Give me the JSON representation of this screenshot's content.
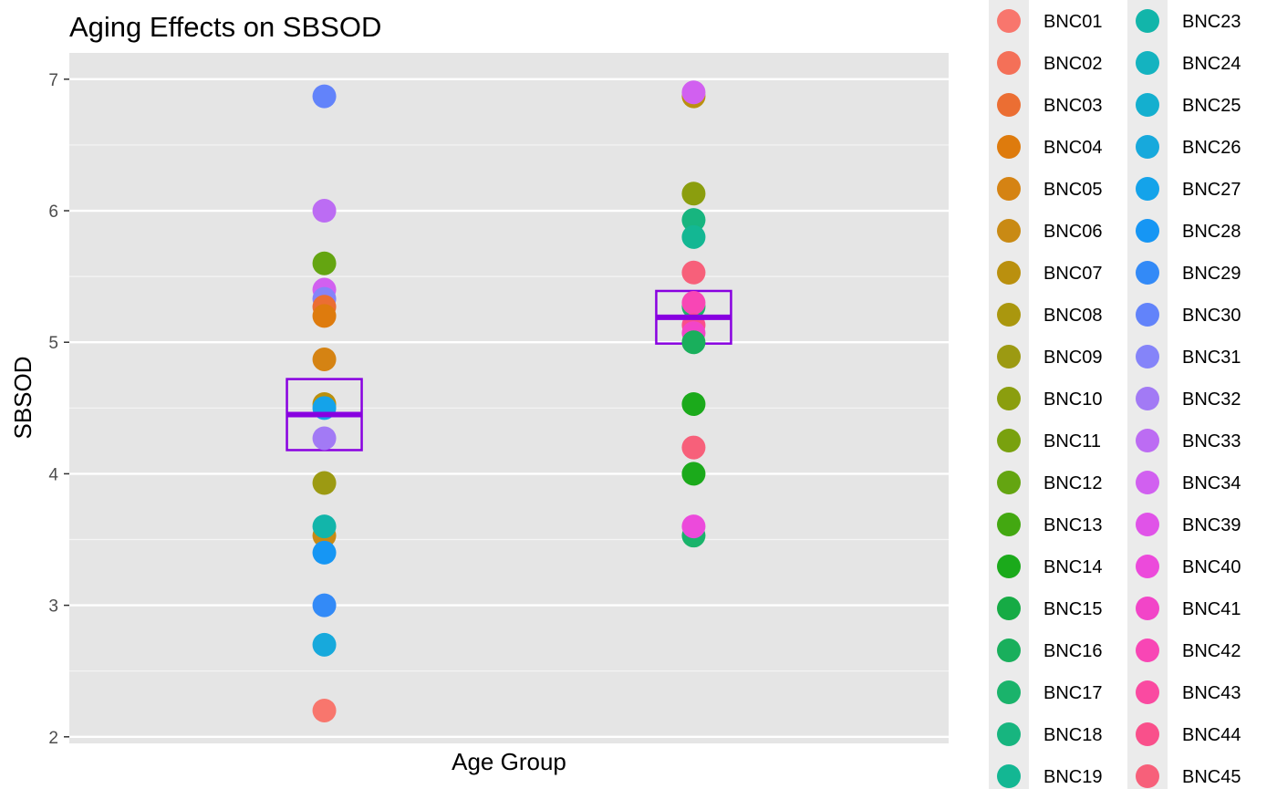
{
  "chart_data": {
    "type": "scatter",
    "title": "Aging Effects on SBSOD",
    "xlabel": "Age Group",
    "ylabel": "SBSOD",
    "ylim": [
      1.95,
      7.2
    ],
    "yticks": [
      "2",
      "3",
      "4",
      "5",
      "6",
      "7"
    ],
    "grid": true,
    "legend_position": "right",
    "groups": [
      {
        "points": [
          {
            "id": "BNC30",
            "y": 6.87
          },
          {
            "id": "BNC33",
            "y": 6.0
          },
          {
            "id": "BNC12",
            "y": 5.6
          },
          {
            "id": "BNC34",
            "y": 5.4
          },
          {
            "id": "BNC31",
            "y": 5.33
          },
          {
            "id": "BNC03",
            "y": 5.27
          },
          {
            "id": "BNC04",
            "y": 5.2
          },
          {
            "id": "BNC05",
            "y": 4.87
          },
          {
            "id": "BNC07",
            "y": 4.53
          },
          {
            "id": "BNC27",
            "y": 4.5
          },
          {
            "id": "BNC32",
            "y": 4.27
          },
          {
            "id": "BNC09",
            "y": 3.93
          },
          {
            "id": "BNC06",
            "y": 3.53
          },
          {
            "id": "BNC23",
            "y": 3.6
          },
          {
            "id": "BNC28",
            "y": 3.4
          },
          {
            "id": "BNC29",
            "y": 3.0
          },
          {
            "id": "BNC26",
            "y": 2.7
          },
          {
            "id": "BNC01",
            "y": 2.2
          }
        ],
        "mean": 4.45,
        "box_low": 4.18,
        "box_high": 4.72
      },
      {
        "points": [
          {
            "id": "BNC07",
            "y": 6.87
          },
          {
            "id": "BNC34",
            "y": 6.9
          },
          {
            "id": "BNC10",
            "y": 6.13
          },
          {
            "id": "BNC18",
            "y": 5.93
          },
          {
            "id": "BNC19",
            "y": 5.8
          },
          {
            "id": "BNC45",
            "y": 5.53
          },
          {
            "id": "BNC17",
            "y": 5.27
          },
          {
            "id": "BNC42",
            "y": 5.3
          },
          {
            "id": "BNC44",
            "y": 5.13
          },
          {
            "id": "BNC41",
            "y": 5.07
          },
          {
            "id": "BNC16",
            "y": 5.0
          },
          {
            "id": "BNC14",
            "y": 4.53
          },
          {
            "id": "BNC45",
            "y": 4.2
          },
          {
            "id": "BNC14",
            "y": 4.0
          },
          {
            "id": "BNC17",
            "y": 3.53
          },
          {
            "id": "BNC40",
            "y": 3.6
          }
        ],
        "mean": 5.19,
        "box_low": 4.99,
        "box_high": 5.39
      }
    ],
    "summary_color": "#8800e0",
    "legend": [
      {
        "label": "BNC01",
        "color": "#F8766D"
      },
      {
        "label": "BNC02",
        "color": "#F47058"
      },
      {
        "label": "BNC03",
        "color": "#EB6E33"
      },
      {
        "label": "BNC04",
        "color": "#DE7B0D"
      },
      {
        "label": "BNC05",
        "color": "#D58313"
      },
      {
        "label": "BNC06",
        "color": "#C98A14"
      },
      {
        "label": "BNC07",
        "color": "#BA900E"
      },
      {
        "label": "BNC08",
        "color": "#AA970E"
      },
      {
        "label": "BNC09",
        "color": "#9C9A12"
      },
      {
        "label": "BNC10",
        "color": "#8B9E0E"
      },
      {
        "label": "BNC11",
        "color": "#79A10E"
      },
      {
        "label": "BNC12",
        "color": "#64A511"
      },
      {
        "label": "BNC13",
        "color": "#43A811"
      },
      {
        "label": "BNC14",
        "color": "#1BAA1B"
      },
      {
        "label": "BNC15",
        "color": "#16AB45"
      },
      {
        "label": "BNC16",
        "color": "#19AF5C"
      },
      {
        "label": "BNC17",
        "color": "#1AB36B"
      },
      {
        "label": "BNC18",
        "color": "#17B57F"
      },
      {
        "label": "BNC19",
        "color": "#13B793"
      },
      {
        "label": "BNC23",
        "color": "#12B5AA"
      },
      {
        "label": "BNC24",
        "color": "#14B3C0"
      },
      {
        "label": "BNC25",
        "color": "#14AFCF"
      },
      {
        "label": "BNC26",
        "color": "#17A9DC"
      },
      {
        "label": "BNC27",
        "color": "#14A3EA"
      },
      {
        "label": "BNC28",
        "color": "#1696F4"
      },
      {
        "label": "BNC29",
        "color": "#338AF7"
      },
      {
        "label": "BNC30",
        "color": "#6283FA"
      },
      {
        "label": "BNC31",
        "color": "#8584F9"
      },
      {
        "label": "BNC32",
        "color": "#A27AF5"
      },
      {
        "label": "BNC33",
        "color": "#BC6CF3"
      },
      {
        "label": "BNC34",
        "color": "#D160F0"
      },
      {
        "label": "BNC39",
        "color": "#E053E8"
      },
      {
        "label": "BNC40",
        "color": "#EC4ADB"
      },
      {
        "label": "BNC41",
        "color": "#F245C8"
      },
      {
        "label": "BNC42",
        "color": "#F846B5"
      },
      {
        "label": "BNC43",
        "color": "#FA4AA1"
      },
      {
        "label": "BNC44",
        "color": "#F9508B"
      },
      {
        "label": "BNC45",
        "color": "#F7607A"
      }
    ]
  }
}
